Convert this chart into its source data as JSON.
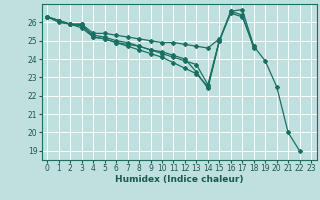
{
  "xlabel": "Humidex (Indice chaleur)",
  "bg_color": "#c0e0e0",
  "grid_color": "#ffffff",
  "line_color": "#1a7060",
  "xlim": [
    -0.5,
    23.5
  ],
  "ylim": [
    18.5,
    27.0
  ],
  "yticks": [
    19,
    20,
    21,
    22,
    23,
    24,
    25,
    26
  ],
  "xticks": [
    0,
    1,
    2,
    3,
    4,
    5,
    6,
    7,
    8,
    9,
    10,
    11,
    12,
    13,
    14,
    15,
    16,
    17,
    18,
    19,
    20,
    21,
    22,
    23
  ],
  "series": [
    {
      "x": [
        0,
        1,
        2,
        3,
        4,
        5,
        6,
        7,
        8,
        9,
        10,
        11,
        12,
        13,
        14,
        15,
        16,
        17,
        18,
        19,
        20,
        21,
        22
      ],
      "y": [
        26.3,
        26.1,
        25.9,
        25.9,
        25.2,
        25.1,
        24.9,
        24.7,
        24.5,
        24.3,
        24.1,
        23.8,
        23.5,
        23.2,
        22.5,
        25.0,
        26.5,
        26.3,
        24.7,
        23.9,
        22.5,
        20.0,
        19.0
      ]
    },
    {
      "x": [
        0,
        1,
        2,
        3,
        4,
        5,
        6,
        7,
        8,
        9,
        10,
        11,
        12,
        13,
        14,
        15,
        16,
        17,
        18
      ],
      "y": [
        26.3,
        26.0,
        25.9,
        25.8,
        25.3,
        25.2,
        25.0,
        24.9,
        24.7,
        24.5,
        24.4,
        24.2,
        24.0,
        23.3,
        22.4,
        25.0,
        26.6,
        26.7,
        24.7
      ]
    },
    {
      "x": [
        0,
        1,
        2,
        3,
        4,
        5,
        6,
        7,
        8,
        9,
        10,
        11,
        12,
        13,
        14,
        15
      ],
      "y": [
        26.3,
        26.1,
        25.9,
        25.9,
        25.4,
        25.4,
        25.3,
        25.2,
        25.1,
        25.0,
        24.9,
        24.9,
        24.8,
        24.7,
        24.6,
        25.1
      ]
    },
    {
      "x": [
        0,
        1,
        2,
        3,
        4,
        5,
        6,
        7,
        8,
        9,
        10,
        11,
        12,
        13,
        14,
        15,
        16,
        17,
        18
      ],
      "y": [
        26.3,
        26.1,
        25.9,
        25.7,
        25.2,
        25.1,
        24.9,
        24.8,
        24.7,
        24.5,
        24.3,
        24.1,
        23.9,
        23.7,
        22.6,
        25.0,
        26.6,
        26.4,
        24.6
      ]
    }
  ]
}
